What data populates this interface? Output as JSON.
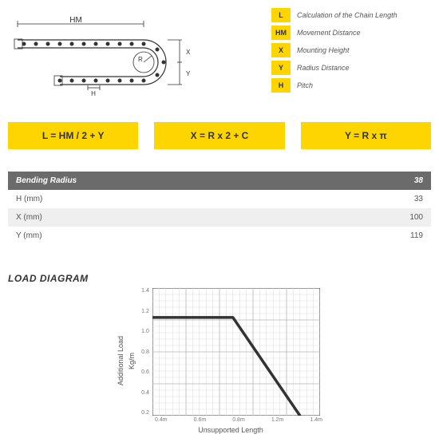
{
  "legend": [
    {
      "badge": "L",
      "text": "Calculation of the Chain Length"
    },
    {
      "badge": "HM",
      "text": "Movement Distance"
    },
    {
      "badge": "X",
      "text": "Mounting Height"
    },
    {
      "badge": "Y",
      "text": "Radius Distance"
    },
    {
      "badge": "H",
      "text": "Pitch"
    }
  ],
  "diagram_labels": {
    "hm": "HM",
    "r": "R",
    "h": "H",
    "x": "X",
    "y": "Y"
  },
  "formulas": {
    "f1": "L = HM / 2 + Y",
    "f2": "X = R x 2 + C",
    "f3": "Y = R x π"
  },
  "radius_table": {
    "header_label": "Bending Radius",
    "header_value": "38",
    "rows": [
      {
        "label": "H (mm)",
        "value": "33"
      },
      {
        "label": "X (mm)",
        "value": "100"
      },
      {
        "label": "Y (mm)",
        "value": "119"
      }
    ]
  },
  "load_diagram": {
    "title": "LOAD DIAGRAM",
    "y_axis_label_1": "Additional Load",
    "y_axis_label_2": "Kg/m",
    "x_axis_label": "Unsupported Length",
    "chart": {
      "grid_color": "#d9d9d9",
      "line_color": "#333333",
      "line_width": 3.5,
      "background_color": "#ffffff",
      "y_ticks": [
        "1.4",
        "1.2",
        "1.0",
        "0.8",
        "0.6",
        "0.4",
        "0.2"
      ],
      "x_ticks": [
        "0.4m",
        "0.6m",
        "0.8m",
        "1.2m",
        "1.4m"
      ],
      "points": [
        {
          "x": 0.0,
          "y": 1.2
        },
        {
          "x": 0.8,
          "y": 1.2
        },
        {
          "x": 1.3,
          "y": 0.2
        }
      ],
      "xlim": [
        0.2,
        1.45
      ],
      "ylim": [
        0.2,
        1.5
      ]
    }
  }
}
